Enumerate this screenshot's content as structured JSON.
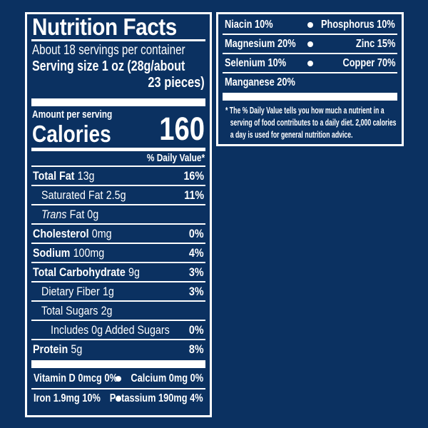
{
  "colors": {
    "background": "#0b3161",
    "panel_border": "#ffffff",
    "text": "#ffffff"
  },
  "main_panel": {
    "title": "Nutrition Facts",
    "servings_per_container": "About 18 servings per container",
    "serving_size_line1": "Serving size 1 oz (28g/about",
    "serving_size_line2": "23 pieces)",
    "amount_per_serving": "Amount per serving",
    "calories_label": "Calories",
    "calories_value": "160",
    "daily_value_header": "% Daily Value*",
    "nutrient_rows": [
      {
        "name": "Total Fat",
        "amount": "13g",
        "dv": "16%"
      },
      {
        "name": "Saturated Fat",
        "amount": "2.5g",
        "dv": "11%"
      },
      {
        "name": "Trans",
        "amount": "Fat 0g",
        "dv": ""
      },
      {
        "name": "Cholesterol",
        "amount": "0mg",
        "dv": "0%"
      },
      {
        "name": "Sodium",
        "amount": "100mg",
        "dv": "4%"
      },
      {
        "name": "Total Carbohydrate",
        "amount": "9g",
        "dv": "3%"
      },
      {
        "name": "Dietary Fiber",
        "amount": "1g",
        "dv": "3%"
      },
      {
        "name": "Total Sugars",
        "amount": "2g",
        "dv": ""
      },
      {
        "name": "Includes 0g Added Sugars",
        "amount": "",
        "dv": "0%"
      },
      {
        "name": "Protein",
        "amount": "5g",
        "dv": "8%"
      }
    ],
    "micronutrient_rows": [
      {
        "left": "Vitamin D 0mcg 0%",
        "right": "Calcium 0mg 0%"
      },
      {
        "left": "Iron 1.9mg 10%",
        "right": "Potassium 190mg 4%"
      }
    ]
  },
  "side_panel": {
    "rows": [
      {
        "left": "Niacin 10%",
        "right": "Phosphorus 10%"
      },
      {
        "left": "Magnesium 20%",
        "right": "Zinc 15%"
      },
      {
        "left": "Selenium 10%",
        "right": "Copper 70%"
      },
      {
        "left": "Manganese 20%",
        "right": ""
      }
    ],
    "footnote": "* The % Daily Value tells you how much a nutrient in a serving of food contributes to a daily diet. 2,000 calories a day is used for general nutrition advice."
  }
}
